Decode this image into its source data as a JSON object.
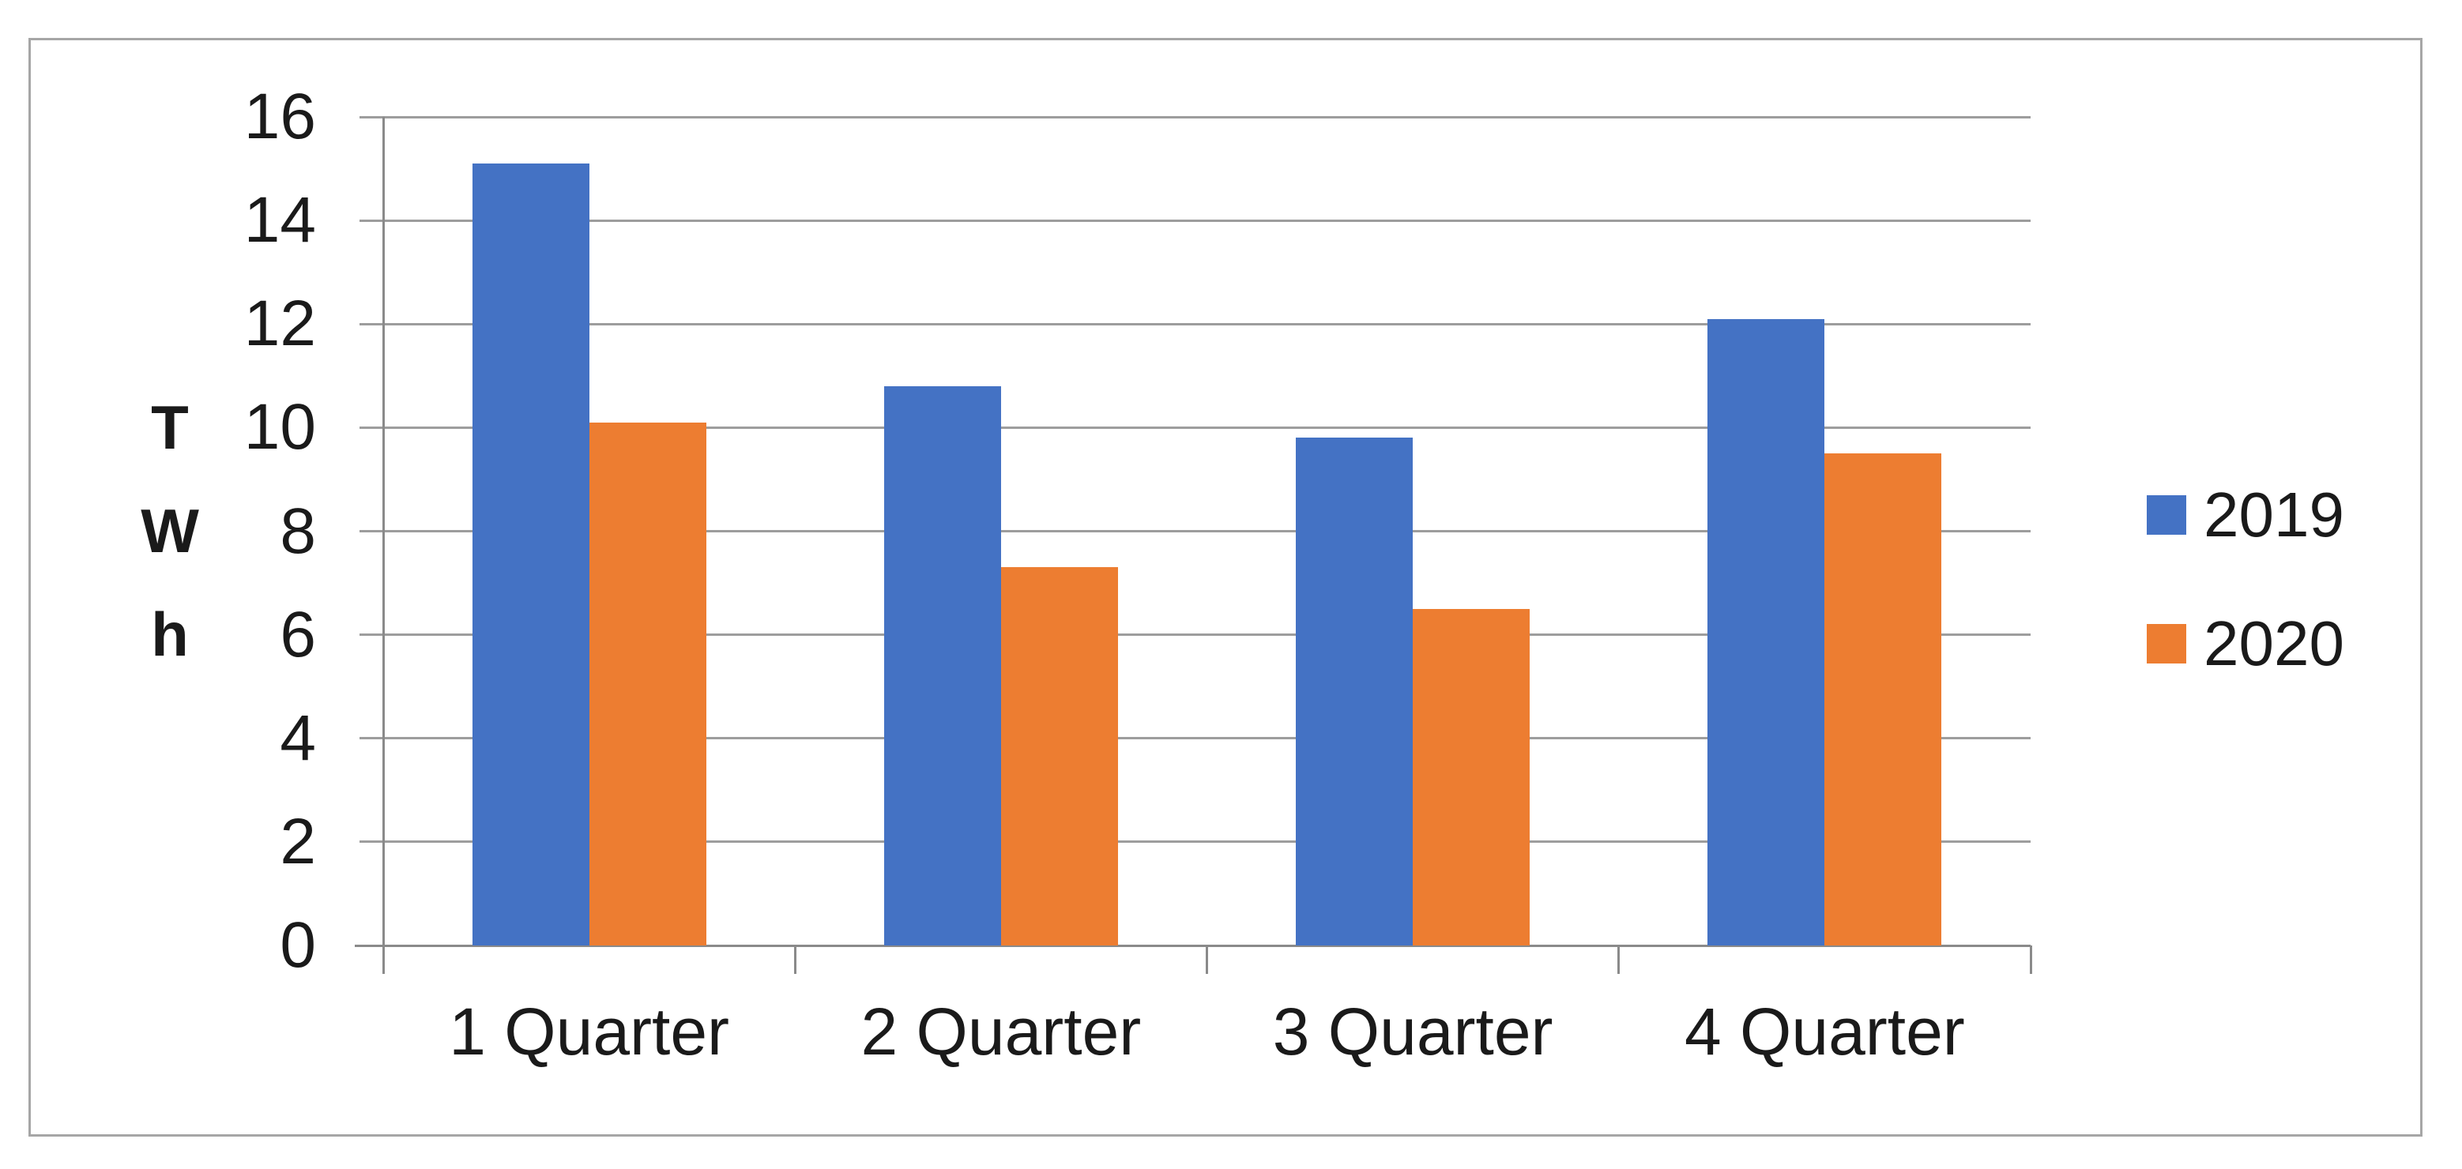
{
  "chart_data": {
    "type": "bar",
    "title": "",
    "categories": [
      "1 Quarter",
      "2 Quarter",
      "3 Quarter",
      "4 Quarter"
    ],
    "series": [
      {
        "name": "2019",
        "color": "#4472C4",
        "values": [
          15.1,
          10.8,
          9.8,
          12.1
        ]
      },
      {
        "name": "2020",
        "color": "#ED7D31",
        "values": [
          10.1,
          7.3,
          6.5,
          9.5
        ]
      }
    ],
    "xlabel": "",
    "ylabel": "TWh",
    "ylabel_stacked": [
      "T",
      "W",
      "h"
    ],
    "ylim": [
      0,
      16
    ],
    "yticks": [
      0,
      2,
      4,
      6,
      8,
      10,
      12,
      14,
      16
    ],
    "grid": true,
    "legend_position": "right"
  },
  "colors": {
    "series_2019": "#4472C4",
    "series_2020": "#ED7D31",
    "gridline": "#9D9D9D",
    "axis": "#8A8A8A",
    "text": "#1A1A1A",
    "frame_border": "#A6A6A6",
    "background": "#FFFFFF"
  }
}
